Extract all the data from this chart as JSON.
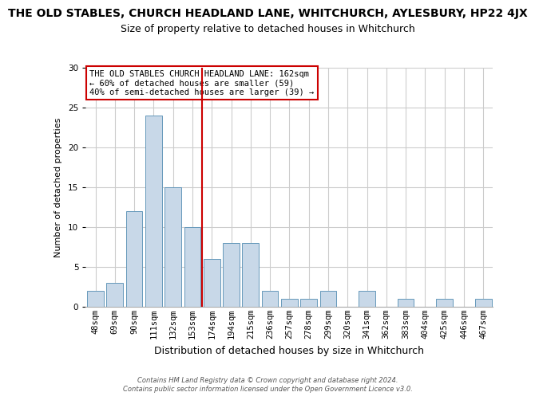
{
  "title": "THE OLD STABLES, CHURCH HEADLAND LANE, WHITCHURCH, AYLESBURY, HP22 4JX",
  "subtitle": "Size of property relative to detached houses in Whitchurch",
  "xlabel": "Distribution of detached houses by size in Whitchurch",
  "ylabel": "Number of detached properties",
  "bar_labels": [
    "48sqm",
    "69sqm",
    "90sqm",
    "111sqm",
    "132sqm",
    "153sqm",
    "174sqm",
    "194sqm",
    "215sqm",
    "236sqm",
    "257sqm",
    "278sqm",
    "299sqm",
    "320sqm",
    "341sqm",
    "362sqm",
    "383sqm",
    "404sqm",
    "425sqm",
    "446sqm",
    "467sqm"
  ],
  "bar_values": [
    2,
    3,
    12,
    24,
    15,
    10,
    6,
    8,
    8,
    2,
    1,
    1,
    2,
    0,
    2,
    0,
    1,
    0,
    1,
    0,
    1
  ],
  "bar_color": "#c8d8e8",
  "bar_edge_color": "#6699bb",
  "vline_x": 5.5,
  "vline_color": "#cc0000",
  "annotation_title": "THE OLD STABLES CHURCH HEADLAND LANE: 162sqm",
  "annotation_line2": "← 60% of detached houses are smaller (59)",
  "annotation_line3": "40% of semi-detached houses are larger (39) →",
  "annotation_box_color": "#ffffff",
  "annotation_box_edge": "#cc0000",
  "ylim": [
    0,
    30
  ],
  "yticks": [
    0,
    5,
    10,
    15,
    20,
    25,
    30
  ],
  "footer1": "Contains HM Land Registry data © Crown copyright and database right 2024.",
  "footer2": "Contains public sector information licensed under the Open Government Licence v3.0.",
  "bg_color": "#ffffff",
  "grid_color": "#cccccc",
  "title_fontsize": 10,
  "subtitle_fontsize": 9,
  "xlabel_fontsize": 9,
  "ylabel_fontsize": 8,
  "tick_fontsize": 7.5,
  "annotation_fontsize": 7.5,
  "footer_fontsize": 6
}
